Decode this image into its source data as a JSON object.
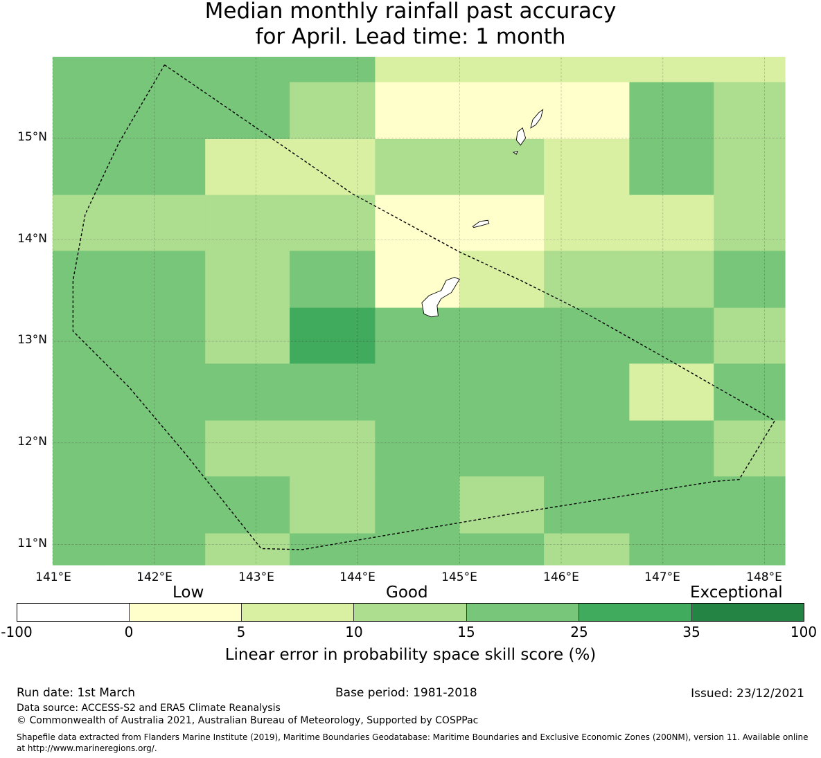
{
  "title": {
    "line1": "Median monthly rainfall past accuracy",
    "line2": "for April. Lead time: 1 month"
  },
  "map": {
    "region": "Northern Mariana Islands and Guam",
    "lon_range": [
      141.0,
      148.2
    ],
    "lat_range": [
      10.8,
      15.8
    ],
    "lat_ticks": [
      "15°N",
      "14°N",
      "13°N",
      "12°N",
      "11°N"
    ],
    "lon_ticks": [
      "141°E",
      "142°E",
      "143°E",
      "144°E",
      "145°E",
      "146°E",
      "147°E",
      "148°E"
    ],
    "grid": {
      "col_edges_lon": [
        141.0,
        141.5,
        142.5,
        143.33,
        144.17,
        145.0,
        145.83,
        146.67,
        147.5,
        148.2
      ],
      "row_edges_lat": [
        15.8,
        15.55,
        14.99,
        14.44,
        13.89,
        13.33,
        12.78,
        12.22,
        11.67,
        11.11,
        10.8
      ],
      "class_index_rows": [
        [
          4,
          4,
          4,
          4,
          2,
          2,
          2,
          2,
          2
        ],
        [
          4,
          4,
          4,
          3,
          1,
          1,
          1,
          4,
          3
        ],
        [
          4,
          4,
          2,
          2,
          3,
          3,
          2,
          4,
          3
        ],
        [
          3,
          3,
          3,
          3,
          1,
          1,
          2,
          2,
          3
        ],
        [
          4,
          4,
          3,
          4,
          1,
          2,
          3,
          3,
          4
        ],
        [
          4,
          4,
          3,
          5,
          4,
          4,
          4,
          4,
          3
        ],
        [
          4,
          4,
          4,
          4,
          4,
          4,
          4,
          2,
          4
        ],
        [
          4,
          4,
          3,
          3,
          4,
          4,
          4,
          4,
          3
        ],
        [
          4,
          4,
          4,
          3,
          4,
          3,
          4,
          4,
          4
        ],
        [
          4,
          4,
          3,
          4,
          4,
          4,
          3,
          4,
          4
        ]
      ]
    },
    "eez_boundary": [
      [
        142.1,
        15.72
      ],
      [
        143.95,
        14.45
      ],
      [
        145.0,
        13.88
      ],
      [
        145.6,
        13.6
      ],
      [
        146.2,
        13.3
      ],
      [
        147.0,
        12.85
      ],
      [
        148.1,
        12.22
      ],
      [
        147.75,
        11.64
      ],
      [
        147.5,
        11.62
      ],
      [
        145.5,
        11.3
      ],
      [
        143.45,
        10.95
      ],
      [
        143.05,
        10.96
      ],
      [
        142.3,
        11.9
      ],
      [
        141.75,
        12.55
      ],
      [
        141.35,
        12.95
      ],
      [
        141.2,
        13.1
      ],
      [
        141.2,
        13.6
      ],
      [
        141.32,
        14.25
      ],
      [
        141.65,
        14.95
      ],
      [
        142.1,
        15.72
      ]
    ],
    "islands": [
      {
        "name": "Guam",
        "outline": [
          [
            144.95,
            13.63
          ],
          [
            145.0,
            13.61
          ],
          [
            144.92,
            13.48
          ],
          [
            144.82,
            13.42
          ],
          [
            144.78,
            13.35
          ],
          [
            144.79,
            13.25
          ],
          [
            144.72,
            13.24
          ],
          [
            144.65,
            13.27
          ],
          [
            144.63,
            13.38
          ],
          [
            144.7,
            13.45
          ],
          [
            144.82,
            13.5
          ],
          [
            144.87,
            13.6
          ]
        ]
      },
      {
        "name": "Rota",
        "outline": [
          [
            145.13,
            14.13
          ],
          [
            145.2,
            14.18
          ],
          [
            145.28,
            14.19
          ],
          [
            145.29,
            14.16
          ],
          [
            145.22,
            14.14
          ],
          [
            145.14,
            14.12
          ]
        ]
      },
      {
        "name": "Tinian",
        "outline": [
          [
            145.57,
            15.06
          ],
          [
            145.62,
            15.1
          ],
          [
            145.65,
            15.0
          ],
          [
            145.6,
            14.93
          ],
          [
            145.56,
            14.98
          ]
        ]
      },
      {
        "name": "Saipan",
        "outline": [
          [
            145.7,
            15.1
          ],
          [
            145.72,
            15.18
          ],
          [
            145.78,
            15.25
          ],
          [
            145.82,
            15.28
          ],
          [
            145.8,
            15.2
          ],
          [
            145.75,
            15.13
          ]
        ]
      },
      {
        "name": "Aguijan",
        "outline": [
          [
            145.53,
            14.86
          ],
          [
            145.57,
            14.87
          ],
          [
            145.56,
            14.84
          ]
        ]
      }
    ]
  },
  "colorbar": {
    "categories": [
      "Low",
      "Good",
      "Exceptional"
    ],
    "colors": [
      "#ffffff",
      "#ffffcc",
      "#d9f0a3",
      "#addd8e",
      "#78c679",
      "#41ab5d",
      "#238443"
    ],
    "ticks": [
      "-100",
      "0",
      "5",
      "10",
      "15",
      "25",
      "35",
      "100"
    ],
    "label": "Linear error in probability space skill score (%)"
  },
  "footer": {
    "run_date": "Run date: 1st March",
    "base_period": "Base period: 1981-2018",
    "issued": "Issued: 23/12/2021",
    "data_source": "Data source: ACCESS-S2 and ERA5 Climate Reanalysis",
    "copyright": "© Commonwealth of Australia 2021, Australian Bureau of Meteorology, Supported by COSPPac",
    "shapefile_note": "Shapefile data extracted from Flanders Marine Institute (2019), Maritime Boundaries Geodatabase: Maritime Boundaries and Exclusive Economic Zones (200NM), version 11. Available online at http://www.marineregions.org/."
  }
}
